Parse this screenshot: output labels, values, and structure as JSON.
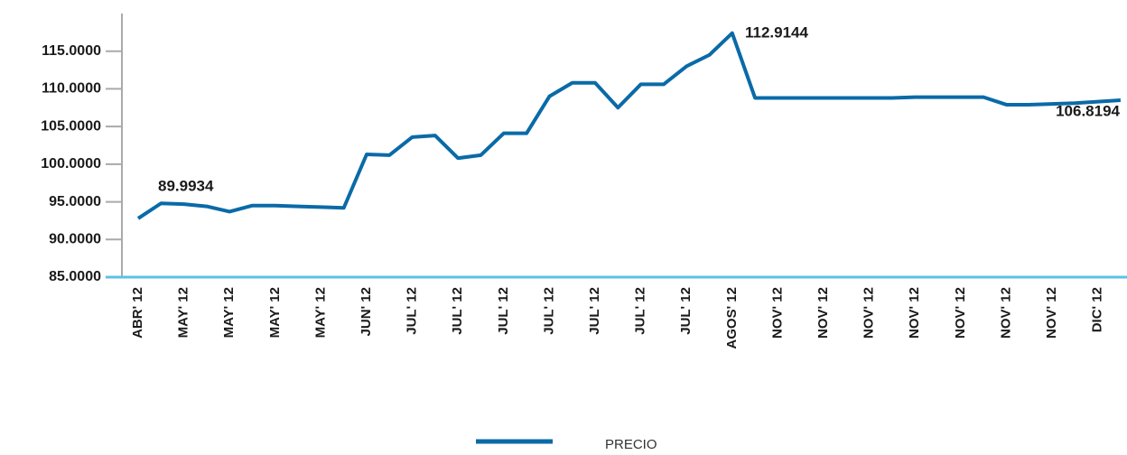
{
  "chart_data": {
    "type": "line",
    "categories": [
      "ABR' 12",
      null,
      "MAY' 12",
      null,
      "MAY' 12",
      null,
      "MAY' 12",
      null,
      "MAY' 12",
      null,
      "JUN' 12",
      null,
      "JUL' 12",
      null,
      "JUL' 12",
      null,
      "JUL' 12",
      null,
      "JUL' 12",
      null,
      "JUL' 12",
      null,
      "JUL' 12",
      null,
      "JUL' 12",
      null,
      "AGOS' 12",
      null,
      "NOV' 12",
      null,
      "NOV' 12",
      null,
      "NOV' 12",
      null,
      "NOV' 12",
      null,
      "NOV' 12",
      null,
      "NOV' 12",
      null,
      "NOV' 12",
      null,
      "DIC' 12",
      null
    ],
    "series": [
      {
        "name": "PRECIO",
        "color": "#0a6aa8",
        "values": [
          92.8,
          94.8,
          94.7,
          94.4,
          93.7,
          94.5,
          94.5,
          94.4,
          94.3,
          94.2,
          101.3,
          101.2,
          103.6,
          103.8,
          100.8,
          101.2,
          104.1,
          104.1,
          109.0,
          110.8,
          110.8,
          107.5,
          110.6,
          110.6,
          113.0,
          114.5,
          117.4,
          108.8,
          108.8,
          108.8,
          108.8,
          108.8,
          108.8,
          108.8,
          108.9,
          108.9,
          108.9,
          108.9,
          107.9,
          107.9,
          108.0,
          108.1,
          108.3,
          108.5
        ]
      }
    ],
    "ylim": [
      85,
      120
    ],
    "yticks": [
      {
        "value": 85,
        "label": "85.0000"
      },
      {
        "value": 90,
        "label": "90.0000"
      },
      {
        "value": 95,
        "label": "95.0000"
      },
      {
        "value": 100,
        "label": "100.0000"
      },
      {
        "value": 105,
        "label": "105.0000"
      },
      {
        "value": 110,
        "label": "110.0000"
      },
      {
        "value": 115,
        "label": "115.0000"
      }
    ],
    "annotations": [
      {
        "text": "89.9934"
      },
      {
        "text": "112.9144"
      },
      {
        "text": "106.8194"
      }
    ],
    "legend": "bottom"
  }
}
